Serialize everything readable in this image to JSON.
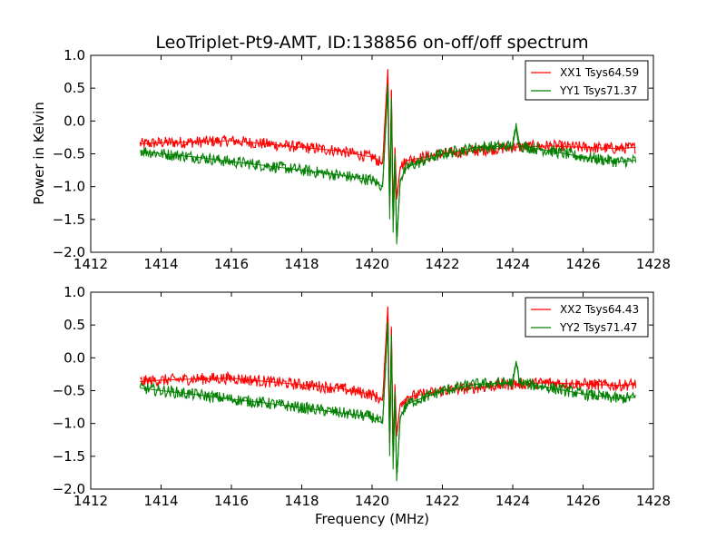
{
  "figure": {
    "title": "LeoTriplet-Pt9-AMT, ID:138856 on-off/off spectrum",
    "ylabel": "Power in Kelvin",
    "xlabel": "Frequency (MHz)"
  },
  "colors": {
    "xx": "#ff0000",
    "yy": "#007f00",
    "axes": "#000000",
    "background": "#ffffff"
  },
  "chart_data": [
    {
      "type": "line",
      "xlim": [
        1412,
        1428
      ],
      "ylim": [
        -2.0,
        1.0
      ],
      "xticks": [
        "1412",
        "1414",
        "1416",
        "1418",
        "1420",
        "1422",
        "1424",
        "1426",
        "1428"
      ],
      "yticks": [
        "1.0",
        "0.5",
        "0.0",
        "−0.5",
        "−1.0",
        "−1.5",
        "−2.0"
      ],
      "ylabel": "Power in Kelvin",
      "xlabel": "",
      "grid": false,
      "legend_position": "top-right",
      "series": [
        {
          "name": "XX1 Tsys64.59",
          "color": "#ff0000",
          "x": [
            1413.4,
            1414.0,
            1415.0,
            1416.0,
            1417.0,
            1418.0,
            1419.0,
            1420.0,
            1420.3,
            1420.45,
            1420.5,
            1420.55,
            1420.6,
            1420.65,
            1420.7,
            1420.8,
            1421.0,
            1421.5,
            1422.0,
            1423.0,
            1424.0,
            1425.0,
            1426.0,
            1427.0,
            1427.5
          ],
          "y": [
            -0.35,
            -0.33,
            -0.32,
            -0.3,
            -0.35,
            -0.4,
            -0.45,
            -0.55,
            -0.65,
            0.78,
            -1.3,
            0.48,
            -1.5,
            -0.4,
            -1.2,
            -0.7,
            -0.6,
            -0.55,
            -0.5,
            -0.45,
            -0.4,
            -0.38,
            -0.4,
            -0.42,
            -0.4
          ]
        },
        {
          "name": "YY1 Tsys71.37",
          "color": "#007f00",
          "x": [
            1413.4,
            1414.0,
            1415.0,
            1416.0,
            1417.0,
            1418.0,
            1419.0,
            1420.0,
            1420.3,
            1420.45,
            1420.5,
            1420.55,
            1420.6,
            1420.65,
            1420.7,
            1420.8,
            1421.0,
            1421.5,
            1422.0,
            1423.0,
            1424.0,
            1424.1,
            1424.2,
            1425.0,
            1426.0,
            1427.0,
            1427.5
          ],
          "y": [
            -0.45,
            -0.5,
            -0.55,
            -0.62,
            -0.68,
            -0.75,
            -0.82,
            -0.9,
            -1.0,
            0.55,
            -1.5,
            0.35,
            -1.7,
            -0.5,
            -1.88,
            -0.9,
            -0.7,
            -0.6,
            -0.5,
            -0.4,
            -0.38,
            -0.07,
            -0.38,
            -0.45,
            -0.55,
            -0.62,
            -0.6
          ]
        }
      ]
    },
    {
      "type": "line",
      "xlim": [
        1412,
        1428
      ],
      "ylim": [
        -2.0,
        1.0
      ],
      "xticks": [
        "1412",
        "1414",
        "1416",
        "1418",
        "1420",
        "1422",
        "1424",
        "1426",
        "1428"
      ],
      "yticks": [
        "1.0",
        "0.5",
        "0.0",
        "−0.5",
        "−1.0",
        "−1.5",
        "−2.0"
      ],
      "ylabel": "",
      "xlabel": "Frequency (MHz)",
      "grid": false,
      "legend_position": "top-right",
      "series": [
        {
          "name": "XX2 Tsys64.43",
          "color": "#ff0000",
          "x": [
            1413.4,
            1414.0,
            1415.0,
            1416.0,
            1417.0,
            1418.0,
            1419.0,
            1420.0,
            1420.3,
            1420.45,
            1420.5,
            1420.55,
            1420.6,
            1420.65,
            1420.7,
            1420.8,
            1421.0,
            1421.5,
            1422.0,
            1423.0,
            1424.0,
            1425.0,
            1426.0,
            1427.0,
            1427.5
          ],
          "y": [
            -0.36,
            -0.34,
            -0.32,
            -0.31,
            -0.36,
            -0.41,
            -0.46,
            -0.56,
            -0.65,
            0.78,
            -1.3,
            0.48,
            -1.5,
            -0.4,
            -1.2,
            -0.7,
            -0.6,
            -0.55,
            -0.5,
            -0.45,
            -0.4,
            -0.38,
            -0.4,
            -0.42,
            -0.4
          ]
        },
        {
          "name": "YY2 Tsys71.47",
          "color": "#007f00",
          "x": [
            1413.4,
            1414.0,
            1415.0,
            1416.0,
            1417.0,
            1418.0,
            1419.0,
            1420.0,
            1420.3,
            1420.45,
            1420.5,
            1420.55,
            1420.6,
            1420.65,
            1420.7,
            1420.8,
            1421.0,
            1421.5,
            1422.0,
            1423.0,
            1424.0,
            1424.1,
            1424.2,
            1425.0,
            1426.0,
            1427.0,
            1427.5
          ],
          "y": [
            -0.46,
            -0.5,
            -0.56,
            -0.63,
            -0.69,
            -0.76,
            -0.83,
            -0.9,
            -1.0,
            0.55,
            -1.5,
            0.35,
            -1.7,
            -0.5,
            -1.88,
            -0.9,
            -0.7,
            -0.6,
            -0.5,
            -0.4,
            -0.38,
            -0.07,
            -0.38,
            -0.45,
            -0.55,
            -0.62,
            -0.6
          ]
        }
      ]
    }
  ]
}
